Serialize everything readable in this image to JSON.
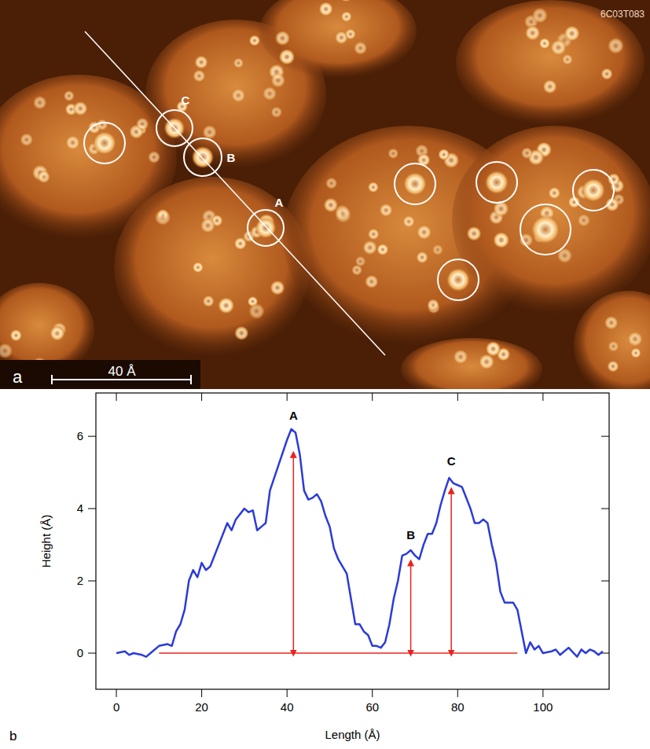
{
  "image": {
    "code": "6C03T083",
    "panel": "a",
    "scale_bar": "40 Å",
    "markers": [
      "A",
      "B",
      "C"
    ]
  },
  "chart_data": {
    "type": "line",
    "panel": "b",
    "x_label": "Length (Å)",
    "y_label": "Height (Å)",
    "color": "#2b3bd9",
    "x": [
      0,
      2,
      3,
      4,
      6,
      7,
      8,
      10,
      12,
      13,
      14,
      15,
      16,
      17,
      18,
      19,
      20,
      21,
      22,
      24,
      26,
      27,
      28,
      30,
      31,
      32,
      33,
      34,
      35,
      36,
      38,
      40,
      41,
      42,
      43,
      44,
      45,
      46,
      47,
      48,
      49,
      50,
      51,
      52,
      53,
      54,
      55,
      56,
      57,
      58,
      59,
      60,
      61,
      62,
      63,
      64,
      65,
      66,
      67,
      68,
      69,
      70,
      71,
      72,
      73,
      74,
      75,
      76,
      77,
      78,
      79,
      80,
      81,
      82,
      83,
      84,
      85,
      86,
      87,
      88,
      89,
      90,
      91,
      92,
      93,
      94,
      95,
      96,
      97,
      98,
      99,
      100,
      102,
      103,
      104,
      106,
      108,
      109,
      110,
      111,
      112,
      113,
      114
    ],
    "values": [
      0,
      0.05,
      -0.05,
      0,
      -0.05,
      -0.1,
      0,
      0.2,
      0.25,
      0.2,
      0.6,
      0.8,
      1.2,
      2.0,
      2.3,
      2.1,
      2.5,
      2.3,
      2.4,
      3.0,
      3.6,
      3.4,
      3.7,
      4.0,
      3.9,
      3.95,
      3.4,
      3.5,
      3.6,
      4.5,
      5.2,
      5.9,
      6.2,
      6.1,
      5.5,
      4.5,
      4.25,
      4.3,
      4.4,
      4.2,
      3.8,
      3.5,
      2.9,
      2.6,
      2.4,
      2.2,
      1.5,
      0.8,
      0.8,
      0.6,
      0.5,
      0.2,
      0.2,
      0.15,
      0.3,
      0.8,
      1.5,
      2.0,
      2.7,
      2.75,
      2.85,
      2.7,
      2.6,
      3.0,
      3.3,
      3.3,
      3.6,
      4.1,
      4.5,
      4.85,
      4.7,
      4.65,
      4.6,
      4.3,
      4.0,
      3.6,
      3.6,
      3.7,
      3.6,
      3.0,
      2.5,
      1.7,
      1.4,
      1.4,
      1.4,
      1.2,
      0.6,
      0.0,
      0.3,
      0.1,
      0.2,
      0.0,
      0.05,
      0.1,
      -0.05,
      0.15,
      -0.1,
      0.1,
      0.0,
      0.1,
      0.05,
      -0.05,
      0.05
    ],
    "xlim": [
      -4.8,
      115.5
    ],
    "ylim": [
      -1,
      7.2
    ],
    "xticks": [
      0,
      20,
      40,
      60,
      80,
      100
    ],
    "yticks": [
      0,
      2,
      4,
      6
    ],
    "annotations": [
      {
        "label": "A",
        "x": 41.5,
        "y": 6.45,
        "arrow_top": 5.5
      },
      {
        "label": "B",
        "x": 69,
        "y": 3.15,
        "arrow_top": 2.5
      },
      {
        "label": "C",
        "x": 78.5,
        "y": 5.2,
        "arrow_top": 4.5
      }
    ],
    "annotation_color": "#e8231f",
    "reference_line": {
      "x": [
        10,
        94
      ],
      "y": 0
    }
  }
}
